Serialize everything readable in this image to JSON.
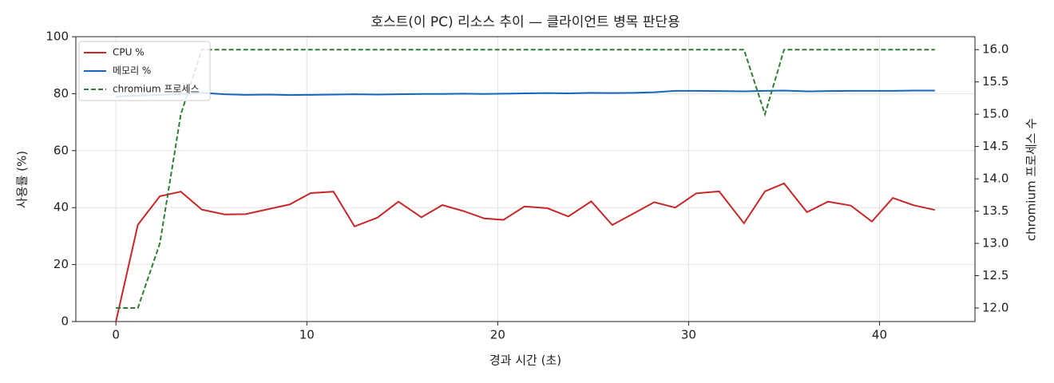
{
  "chart_data": {
    "type": "line",
    "title": "호스트(이 PC) 리소스 추이 — 클라이언트 병목 판단용",
    "x_label": "경과 시간 (초)",
    "y_label": "사용률 (%)",
    "y2_label": "chromium 프로세스 수",
    "x": [
      0,
      1.15,
      2.3,
      3.4,
      4.5,
      5.7,
      6.8,
      8.0,
      9.1,
      10.2,
      11.4,
      12.5,
      13.7,
      14.8,
      16.0,
      17.1,
      18.2,
      19.3,
      20.3,
      21.4,
      22.6,
      23.7,
      24.9,
      26.0,
      27.1,
      28.2,
      29.3,
      30.4,
      31.6,
      32.9,
      34.0,
      35.0,
      36.2,
      37.3,
      38.5,
      39.6,
      40.7,
      41.8,
      42.9
    ],
    "series": [
      {
        "name": "CPU %",
        "color": "#c62828",
        "style": "solid",
        "values": [
          0,
          34,
          44,
          45.6,
          39.3,
          37.6,
          37.7,
          39.5,
          41.1,
          45.1,
          45.6,
          33.4,
          36.5,
          42.1,
          36.6,
          40.9,
          38.8,
          36.2,
          35.7,
          40.4,
          39.8,
          36.9,
          42.2,
          33.9,
          37.9,
          41.9,
          40.0,
          45.0,
          45.7,
          34.5,
          45.7,
          48.5,
          38.4,
          42.1,
          40.7,
          35.1,
          43.4,
          40.8,
          39.2
        ]
      },
      {
        "name": "메모리 %",
        "color": "#1565c0",
        "style": "solid",
        "values": [
          79,
          79.3,
          79.6,
          79.9,
          80.3,
          79.8,
          79.6,
          79.7,
          79.5,
          79.6,
          79.7,
          79.8,
          79.7,
          79.8,
          79.9,
          79.9,
          80.0,
          79.9,
          80.0,
          80.1,
          80.2,
          80.1,
          80.3,
          80.2,
          80.3,
          80.5,
          81.0,
          81.0,
          80.9,
          80.8,
          81.0,
          81.1,
          80.8,
          80.9,
          81.0,
          81.0,
          81.0,
          81.1,
          81.1
        ]
      },
      {
        "name": "chromium 프로세스",
        "color": "#2e7d32",
        "style": "dashed",
        "axis": "y2",
        "values": [
          12,
          12,
          13,
          15,
          16,
          16,
          16,
          16,
          16,
          16,
          16,
          16,
          16,
          16,
          16,
          16,
          16,
          16,
          16,
          16,
          16,
          16,
          16,
          16,
          16,
          16,
          16,
          16,
          16,
          16,
          15,
          16,
          16,
          16,
          16,
          16,
          16,
          16,
          16
        ]
      }
    ],
    "xlim": [
      -2.1,
      45.0
    ],
    "xticks": [
      0,
      10,
      20,
      30,
      40
    ],
    "ylim": [
      0,
      100
    ],
    "yticks": [
      0,
      20,
      40,
      60,
      80,
      100
    ],
    "y2lim": [
      11.79,
      16.2
    ],
    "y2ticks": [
      {
        "value": 12,
        "label": "12.0"
      },
      12.5,
      {
        "value": 13,
        "label": "13.0"
      },
      13.5,
      {
        "value": 14,
        "label": "14.0"
      },
      14.5,
      {
        "value": 15,
        "label": "15.0"
      },
      15.5,
      {
        "value": 16,
        "label": "16.0"
      }
    ],
    "grid": true,
    "legend": "upper left"
  }
}
